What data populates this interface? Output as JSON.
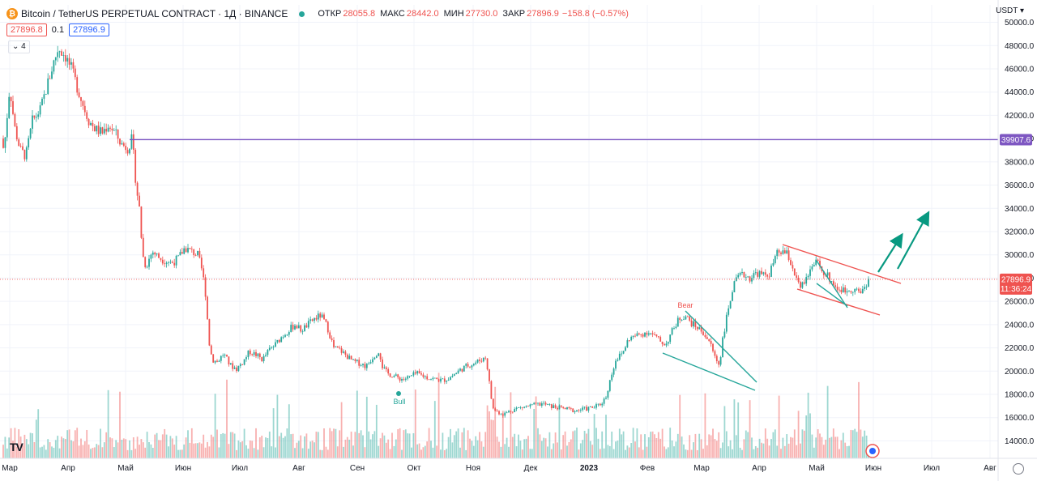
{
  "header": {
    "symbol": "Bitcoin / TetherUS PERPETUAL CONTRACT · 1Д · BINANCE",
    "open_label": "ОТКР",
    "open": "28055.8",
    "high_label": "МАКС",
    "high": "28442.0",
    "low_label": "МИН",
    "low": "27730.0",
    "close_label": "ЗАКР",
    "close": "27896.9",
    "change": "−158.8 (−0.57%)"
  },
  "trade": {
    "sell": "27896.8",
    "spread": "0.1",
    "buy": "27896.9"
  },
  "indicators_count": "4",
  "currency": "USDT",
  "logo": "TV",
  "chart_data": {
    "type": "candlestick",
    "y_axis": {
      "min": 12500,
      "max": 51500,
      "ticks": [
        "14000.0",
        "16000.0",
        "18000.0",
        "20000.0",
        "22000.0",
        "24000.0",
        "26000.0",
        "28000.0",
        "30000.0",
        "32000.0",
        "34000.0",
        "36000.0",
        "38000.0",
        "40000.0",
        "42000.0",
        "44000.0",
        "46000.0",
        "48000.0",
        "50000.0"
      ]
    },
    "x_axis": {
      "ticks": [
        "Мар",
        "Апр",
        "Май",
        "Июн",
        "Июл",
        "Авг",
        "Сен",
        "Окт",
        "Ноя",
        "Дек",
        "2023",
        "Фев",
        "Мар",
        "Апр",
        "Май",
        "Июн",
        "Июл",
        "Авг"
      ]
    },
    "horizontal_line": {
      "value": 39907.6,
      "label": "39907.6",
      "color": "#7e57c2"
    },
    "last_price": {
      "value": 27896.9,
      "label": "27896.9",
      "countdown": "11:36:24",
      "color": "#ef5350"
    },
    "price_path": [
      [
        0,
        40000
      ],
      [
        5,
        39000
      ],
      [
        12,
        44500
      ],
      [
        18,
        41000
      ],
      [
        25,
        39000
      ],
      [
        32,
        38500
      ],
      [
        40,
        41500
      ],
      [
        50,
        42500
      ],
      [
        58,
        44500
      ],
      [
        66,
        46500
      ],
      [
        72,
        47800
      ],
      [
        80,
        47200
      ],
      [
        88,
        46000
      ],
      [
        95,
        44500
      ],
      [
        102,
        43000
      ],
      [
        110,
        41500
      ],
      [
        118,
        40800
      ],
      [
        126,
        40500
      ],
      [
        134,
        41200
      ],
      [
        142,
        40500
      ],
      [
        150,
        39500
      ],
      [
        158,
        39200
      ],
      [
        163,
        40000
      ],
      [
        168,
        36000
      ],
      [
        172,
        34000
      ],
      [
        176,
        30000
      ],
      [
        180,
        29000
      ],
      [
        188,
        30300
      ],
      [
        196,
        29800
      ],
      [
        204,
        29500
      ],
      [
        212,
        29300
      ],
      [
        220,
        29700
      ],
      [
        228,
        30600
      ],
      [
        236,
        30300
      ],
      [
        244,
        30000
      ],
      [
        250,
        28500
      ],
      [
        254,
        26500
      ],
      [
        258,
        22500
      ],
      [
        262,
        21000
      ],
      [
        268,
        20800
      ],
      [
        276,
        21500
      ],
      [
        284,
        20500
      ],
      [
        292,
        20200
      ],
      [
        300,
        20800
      ],
      [
        308,
        21700
      ],
      [
        316,
        21400
      ],
      [
        324,
        21000
      ],
      [
        332,
        21800
      ],
      [
        340,
        22300
      ],
      [
        348,
        23000
      ],
      [
        356,
        23500
      ],
      [
        364,
        24000
      ],
      [
        372,
        23500
      ],
      [
        380,
        24000
      ],
      [
        388,
        24500
      ],
      [
        396,
        24800
      ],
      [
        404,
        23800
      ],
      [
        412,
        22000
      ],
      [
        420,
        21800
      ],
      [
        428,
        21300
      ],
      [
        436,
        20800
      ],
      [
        444,
        20700
      ],
      [
        452,
        20400
      ],
      [
        460,
        21200
      ],
      [
        468,
        21800
      ],
      [
        472,
        20400
      ],
      [
        478,
        19800
      ],
      [
        486,
        19600
      ],
      [
        492,
        19400
      ],
      [
        498,
        19300
      ],
      [
        506,
        19500
      ],
      [
        514,
        19800
      ],
      [
        522,
        19600
      ],
      [
        530,
        19400
      ],
      [
        538,
        19300
      ],
      [
        546,
        19200
      ],
      [
        554,
        19400
      ],
      [
        562,
        19800
      ],
      [
        570,
        20200
      ],
      [
        578,
        20500
      ],
      [
        586,
        20700
      ],
      [
        594,
        21000
      ],
      [
        600,
        21200
      ],
      [
        604,
        19000
      ],
      [
        608,
        16800
      ],
      [
        614,
        16500
      ],
      [
        622,
        16300
      ],
      [
        630,
        16600
      ],
      [
        638,
        16800
      ],
      [
        646,
        16900
      ],
      [
        654,
        17000
      ],
      [
        662,
        17100
      ],
      [
        670,
        17200
      ],
      [
        678,
        17000
      ],
      [
        686,
        16900
      ],
      [
        694,
        16800
      ],
      [
        702,
        16700
      ],
      [
        710,
        16600
      ],
      [
        718,
        16700
      ],
      [
        726,
        16800
      ],
      [
        734,
        16900
      ],
      [
        742,
        17200
      ],
      [
        748,
        17800
      ],
      [
        754,
        19500
      ],
      [
        760,
        21000
      ],
      [
        768,
        21500
      ],
      [
        776,
        22800
      ],
      [
        784,
        23000
      ],
      [
        792,
        23200
      ],
      [
        800,
        23400
      ],
      [
        808,
        23000
      ],
      [
        816,
        22500
      ],
      [
        822,
        22300
      ],
      [
        830,
        23500
      ],
      [
        838,
        24500
      ],
      [
        846,
        24800
      ],
      [
        852,
        24200
      ],
      [
        860,
        23800
      ],
      [
        868,
        23300
      ],
      [
        876,
        22500
      ],
      [
        882,
        21300
      ],
      [
        888,
        20500
      ],
      [
        892,
        22800
      ],
      [
        898,
        25000
      ],
      [
        904,
        27000
      ],
      [
        910,
        28000
      ],
      [
        918,
        28300
      ],
      [
        926,
        28000
      ],
      [
        934,
        28500
      ],
      [
        942,
        28200
      ],
      [
        950,
        28400
      ],
      [
        958,
        30000
      ],
      [
        966,
        30300
      ],
      [
        972,
        30000
      ],
      [
        978,
        29000
      ],
      [
        984,
        27600
      ],
      [
        990,
        27400
      ],
      [
        996,
        28200
      ],
      [
        1002,
        29000
      ],
      [
        1008,
        29300
      ],
      [
        1014,
        28800
      ],
      [
        1020,
        28300
      ],
      [
        1026,
        27800
      ],
      [
        1032,
        27200
      ],
      [
        1038,
        27000
      ],
      [
        1044,
        26900
      ],
      [
        1050,
        27100
      ],
      [
        1056,
        27000
      ],
      [
        1062,
        26800
      ],
      [
        1068,
        27300
      ],
      [
        1072,
        27900
      ]
    ],
    "annotations": [
      {
        "text": "Bear",
        "color": "#ef5350"
      },
      {
        "text": "Bull",
        "color": "#26a69a"
      }
    ],
    "colors": {
      "up": "#26a69a",
      "down": "#ef5350",
      "channel": "#ef5350",
      "wedge": "#26a69a",
      "arrow": "#089981",
      "grid": "#f0f3fa"
    }
  }
}
